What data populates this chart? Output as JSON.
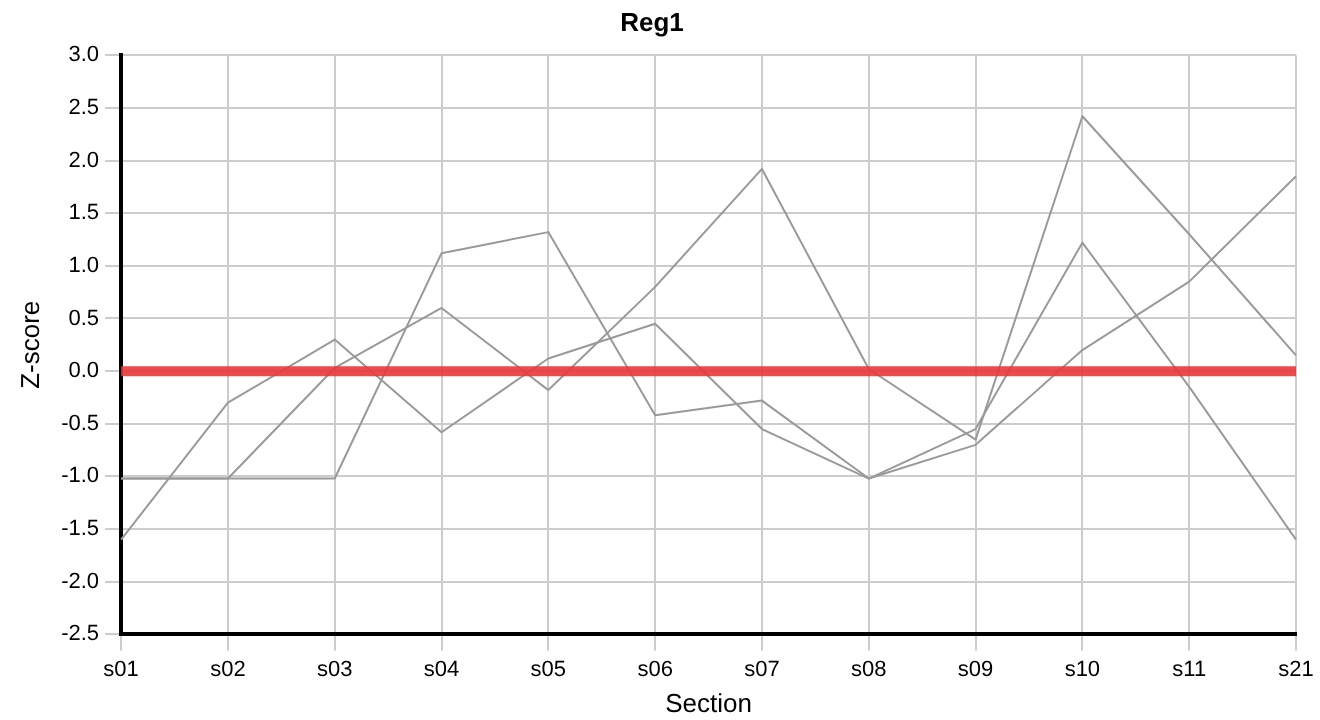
{
  "chart_data": {
    "type": "line",
    "title": "Reg1",
    "xlabel": "Section",
    "ylabel": "Z-score",
    "categories": [
      "s01",
      "s02",
      "s03",
      "s04",
      "s05",
      "s06",
      "s07",
      "s08",
      "s09",
      "s10",
      "s11",
      "s21"
    ],
    "series": [
      {
        "color": "#999999",
        "values": [
          -1.6,
          -0.3,
          0.3,
          -0.58,
          0.12,
          0.45,
          -0.55,
          -1.02,
          -0.55,
          1.22,
          -0.15,
          -1.6
        ]
      },
      {
        "color": "#999999",
        "values": [
          -1.02,
          -1.02,
          0.03,
          0.6,
          -0.18,
          0.8,
          1.92,
          0.02,
          -0.65,
          2.42,
          1.3,
          0.15
        ]
      },
      {
        "color": "#999999",
        "values": [
          -1.02,
          -1.02,
          -1.02,
          1.12,
          1.32,
          -0.42,
          -0.28,
          -1.02,
          -0.7,
          0.2,
          0.85,
          1.85
        ]
      }
    ],
    "ylim": [
      -2.5,
      3.0
    ],
    "yticks": [
      {
        "value": -2.5,
        "label": "-2.5"
      },
      {
        "value": -2,
        "label": "-2.0"
      },
      {
        "value": -1.5,
        "label": "-1.5"
      },
      {
        "value": -1,
        "label": "-1.0"
      },
      {
        "value": -0.5,
        "label": "-0.5"
      },
      {
        "value": 0,
        "label": "0.0"
      },
      {
        "value": 0.5,
        "label": "0.5"
      },
      {
        "value": 1,
        "label": "1.0"
      },
      {
        "value": 1.5,
        "label": "1.5"
      },
      {
        "value": 2,
        "label": "2.0"
      },
      {
        "value": 2.5,
        "label": "2.5"
      },
      {
        "value": 3,
        "label": "3.0"
      }
    ],
    "ref_lines": [
      {
        "axis": "y",
        "value": 0,
        "color": "#e8393b"
      }
    ],
    "grid": true,
    "legend": false,
    "marker": "none",
    "line_style": "solid"
  }
}
